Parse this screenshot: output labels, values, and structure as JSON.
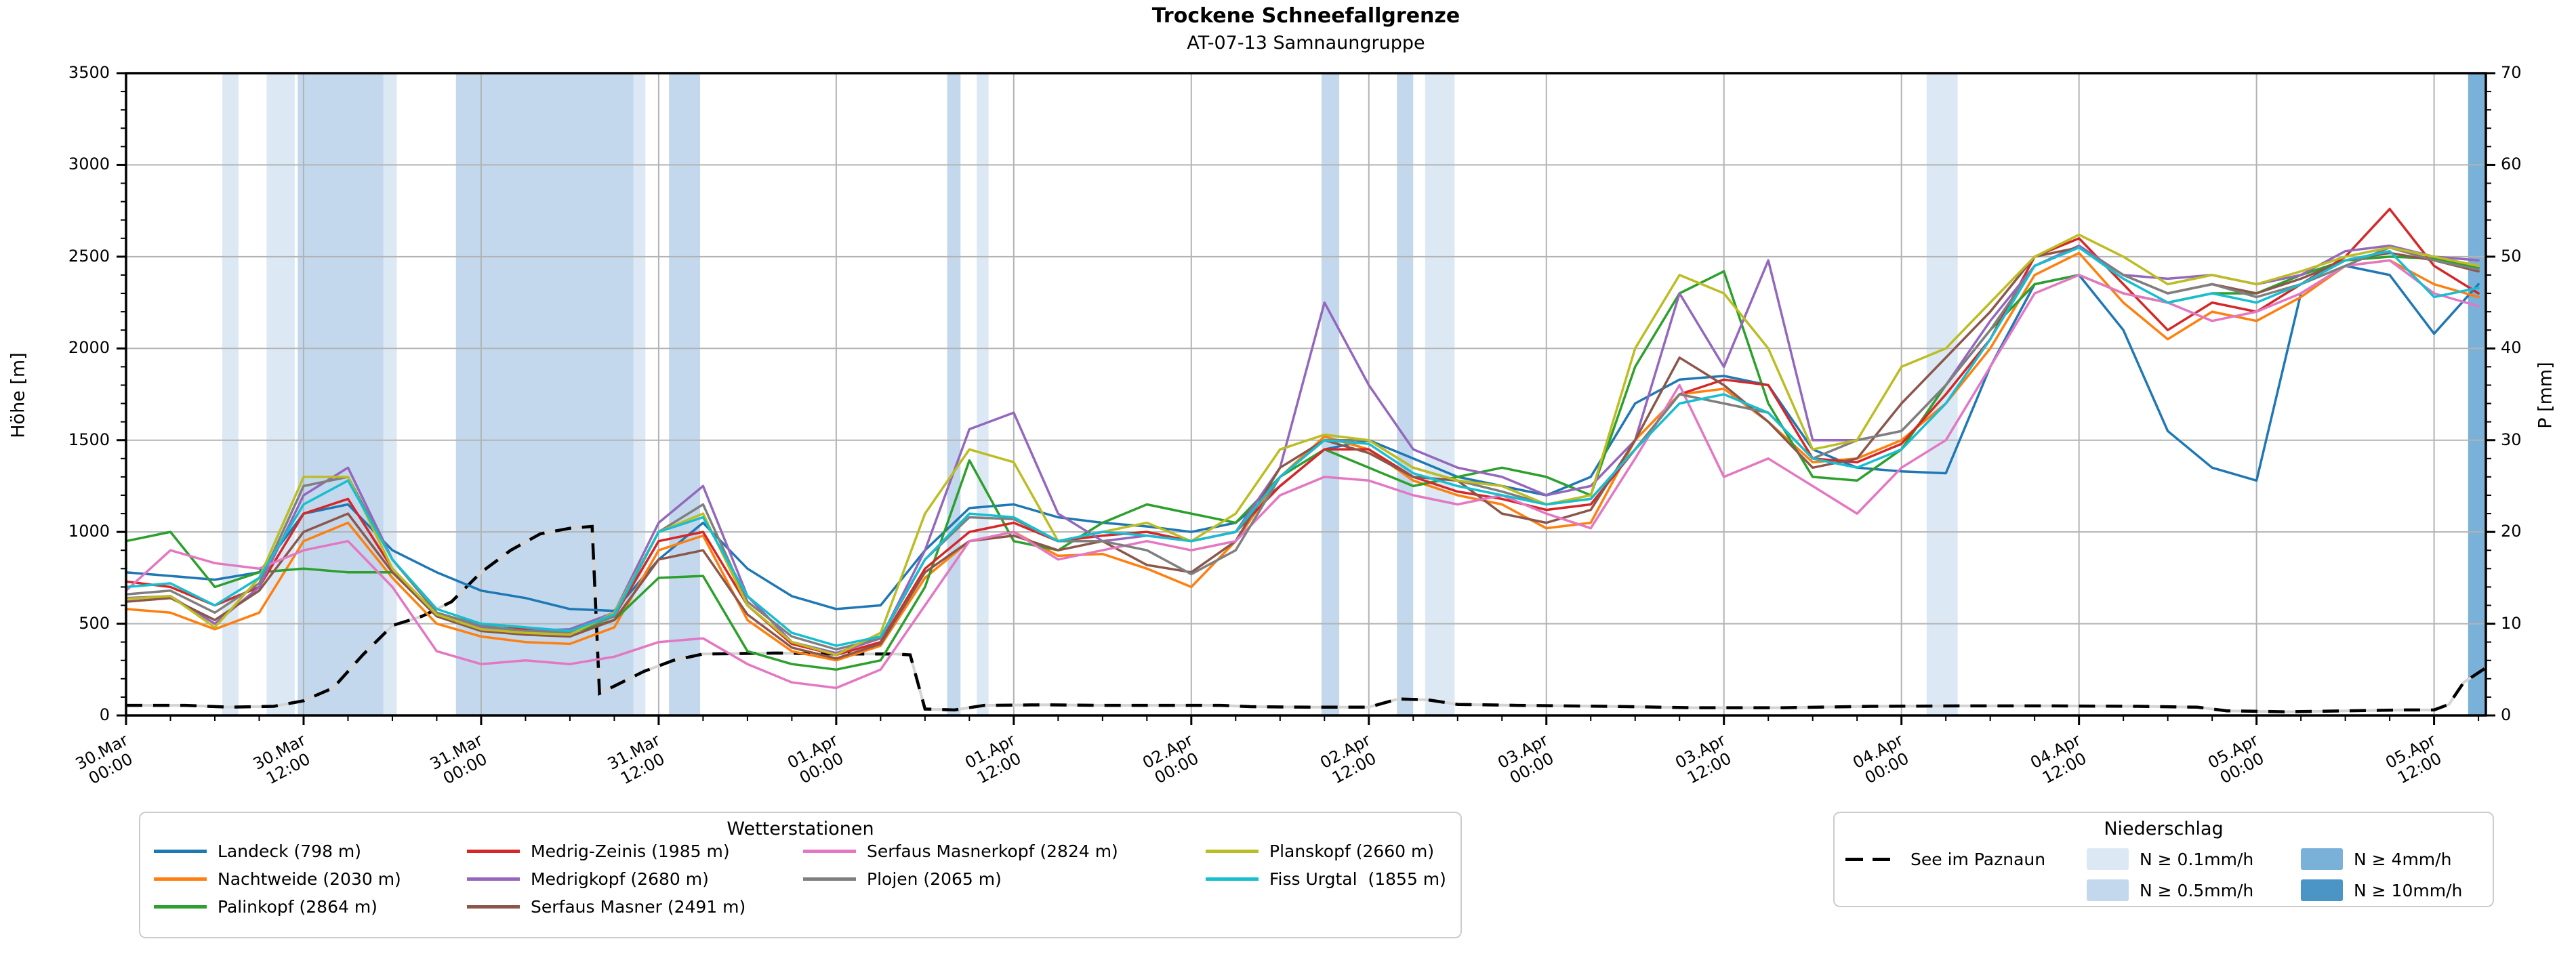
{
  "title": "Trockene Schneefallgrenze",
  "subtitle": "AT-07-13 Samnaungruppe",
  "axes": {
    "y_left_label": "Höhe [m]",
    "y_right_label": "P [mm]",
    "y_left_ticks": [
      0,
      500,
      1000,
      1500,
      2000,
      2500,
      3000,
      3500
    ],
    "y_right_ticks": [
      0,
      10,
      20,
      30,
      40,
      50,
      60,
      70
    ],
    "x_tick_labels": [
      [
        "30.Mar",
        "00:00"
      ],
      [
        "30.Mar",
        "12:00"
      ],
      [
        "31.Mar",
        "00:00"
      ],
      [
        "31.Mar",
        "12:00"
      ],
      [
        "01.Apr",
        "00:00"
      ],
      [
        "01.Apr",
        "12:00"
      ],
      [
        "02.Apr",
        "00:00"
      ],
      [
        "02.Apr",
        "12:00"
      ],
      [
        "03.Apr",
        "00:00"
      ],
      [
        "03.Apr",
        "12:00"
      ],
      [
        "04.Apr",
        "00:00"
      ],
      [
        "04.Apr",
        "12:00"
      ],
      [
        "05.Apr",
        "00:00"
      ],
      [
        "05.Apr",
        "12:00"
      ]
    ]
  },
  "legends": {
    "stations": {
      "title": "Wetterstationen",
      "items": [
        {
          "label": "Landeck (798 m)",
          "color": "#1f77b4"
        },
        {
          "label": "Nachtweide (2030 m)",
          "color": "#ff7f0e"
        },
        {
          "label": "Palinkopf (2864 m)",
          "color": "#2ca02c"
        },
        {
          "label": "Medrig-Zeinis (1985 m)",
          "color": "#d62728"
        },
        {
          "label": "Medrigkopf (2680 m)",
          "color": "#9467bd"
        },
        {
          "label": "Serfaus Masner (2491 m)",
          "color": "#8c564b"
        },
        {
          "label": "Serfaus Masnerkopf (2824 m)",
          "color": "#e377c2"
        },
        {
          "label": "Plojen (2065 m)",
          "color": "#7f7f7f"
        },
        {
          "label": "Planskopf (2660 m)",
          "color": "#bcbd22"
        },
        {
          "label": "Fiss Urgtal  (1855 m)",
          "color": "#17becf"
        }
      ]
    },
    "precip": {
      "title": "Niederschlag",
      "line_item": {
        "label": "See im Paznaun",
        "color": "#000000"
      },
      "patch_items": [
        {
          "label": "N ≥ 0.1mm/h",
          "class": "0.1",
          "color": "#dce9f5"
        },
        {
          "label": "N ≥ 0.5mm/h",
          "class": "0.5",
          "color": "#c3d8ed"
        },
        {
          "label": "N ≥ 4mm/h",
          "class": "4",
          "color": "#7ab1d9"
        },
        {
          "label": "N ≥ 10mm/h",
          "class": "10",
          "color": "#4a94c6"
        }
      ]
    }
  },
  "chart_data": {
    "type": "line",
    "title": "Trockene Schneefallgrenze",
    "subtitle": "AT-07-13 Samnaungruppe",
    "xlabel": "",
    "ylabel_left": "Höhe [m]",
    "ylabel_right": "P [mm]",
    "x_unit": "hours since 30.Mar 00:00",
    "xlim_hours": [
      0,
      159.5
    ],
    "ylim_left": [
      0,
      3500
    ],
    "ylim_right": [
      0,
      70
    ],
    "x_major_tick_step_hours": 12,
    "x_minor_tick_step_hours": 3,
    "y_left_minor_step": 100,
    "y_right_minor_step": 2,
    "grid": true,
    "x_start_hour": 0,
    "x_step_hours": 3,
    "series": [
      {
        "name": "Landeck (798 m)",
        "color": "#1f77b4",
        "values": [
          780,
          760,
          740,
          780,
          1100,
          1150,
          900,
          780,
          680,
          640,
          580,
          570,
          850,
          1050,
          800,
          650,
          580,
          600,
          900,
          1130,
          1150,
          1080,
          1050,
          1030,
          1000,
          1050,
          1250,
          1450,
          1500,
          1400,
          1300,
          1250,
          1200,
          1300,
          1700,
          1830,
          1850,
          1800,
          1450,
          1350,
          1330,
          1320,
          1900,
          2350,
          2400,
          2100,
          1550,
          1350,
          1280,
          2300,
          2450,
          2400,
          2080,
          2350
        ]
      },
      {
        "name": "Nachtweide (2030 m)",
        "color": "#ff7f0e",
        "values": [
          580,
          560,
          470,
          560,
          950,
          1050,
          750,
          500,
          430,
          400,
          390,
          480,
          900,
          980,
          520,
          350,
          300,
          380,
          750,
          950,
          1000,
          870,
          880,
          800,
          700,
          950,
          1300,
          1520,
          1450,
          1280,
          1200,
          1150,
          1020,
          1050,
          1500,
          1750,
          1780,
          1600,
          1380,
          1400,
          1500,
          1700,
          2000,
          2400,
          2520,
          2250,
          2050,
          2200,
          2150,
          2280,
          2450,
          2480,
          2350,
          2280
        ]
      },
      {
        "name": "Palinkopf (2864 m)",
        "color": "#2ca02c",
        "values": [
          950,
          1000,
          700,
          780,
          800,
          780,
          780,
          550,
          500,
          480,
          450,
          520,
          750,
          760,
          350,
          280,
          250,
          300,
          700,
          1390,
          950,
          900,
          1050,
          1150,
          1100,
          1050,
          1300,
          1450,
          1350,
          1250,
          1300,
          1350,
          1300,
          1200,
          1900,
          2300,
          2420,
          1700,
          1300,
          1280,
          1450,
          1800,
          2100,
          2350,
          2400,
          2300,
          2250,
          2300,
          2300,
          2400,
          2480,
          2500,
          2490,
          2440
        ]
      },
      {
        "name": "Medrig-Zeinis (1985 m)",
        "color": "#d62728",
        "values": [
          730,
          700,
          600,
          700,
          1100,
          1180,
          800,
          550,
          480,
          470,
          450,
          540,
          950,
          1000,
          600,
          390,
          330,
          400,
          800,
          1000,
          1050,
          950,
          980,
          1000,
          950,
          1000,
          1250,
          1450,
          1450,
          1300,
          1220,
          1180,
          1120,
          1150,
          1450,
          1750,
          1830,
          1800,
          1400,
          1380,
          1480,
          1750,
          2050,
          2500,
          2600,
          2350,
          2100,
          2250,
          2200,
          2350,
          2500,
          2760,
          2450,
          2300
        ]
      },
      {
        "name": "Medrigkopf (2680 m)",
        "color": "#9467bd",
        "values": [
          640,
          650,
          500,
          700,
          1200,
          1350,
          850,
          560,
          480,
          460,
          470,
          560,
          1050,
          1250,
          650,
          400,
          340,
          420,
          900,
          1560,
          1650,
          1100,
          950,
          980,
          950,
          1000,
          1350,
          2250,
          1800,
          1450,
          1350,
          1300,
          1200,
          1250,
          1500,
          2300,
          1900,
          2480,
          1500,
          1500,
          1550,
          1800,
          2150,
          2450,
          2560,
          2400,
          2380,
          2400,
          2350,
          2400,
          2530,
          2560,
          2500,
          2480
        ]
      },
      {
        "name": "Serfaus Masner (2491 m)",
        "color": "#8c564b",
        "values": [
          620,
          640,
          520,
          680,
          1000,
          1100,
          780,
          540,
          460,
          440,
          430,
          520,
          850,
          900,
          550,
          370,
          310,
          390,
          780,
          950,
          980,
          900,
          950,
          820,
          780,
          950,
          1350,
          1500,
          1430,
          1300,
          1280,
          1100,
          1050,
          1120,
          1500,
          1950,
          1800,
          1600,
          1350,
          1400,
          1700,
          1950,
          2200,
          2500,
          2550,
          2400,
          2300,
          2350,
          2300,
          2380,
          2480,
          2520,
          2480,
          2420
        ]
      },
      {
        "name": "Serfaus Masnerkopf (2824 m)",
        "color": "#e377c2",
        "values": [
          680,
          900,
          830,
          800,
          900,
          950,
          700,
          350,
          280,
          300,
          280,
          320,
          400,
          420,
          280,
          180,
          150,
          250,
          600,
          950,
          1000,
          850,
          900,
          950,
          900,
          950,
          1200,
          1300,
          1280,
          1200,
          1150,
          1200,
          1100,
          1020,
          1400,
          1800,
          1300,
          1400,
          1250,
          1100,
          1350,
          1500,
          1900,
          2300,
          2400,
          2300,
          2250,
          2150,
          2200,
          2300,
          2450,
          2480,
          2300,
          2230
        ]
      },
      {
        "name": "Plojen (2065 m)",
        "color": "#7f7f7f",
        "values": [
          660,
          680,
          560,
          720,
          1250,
          1300,
          850,
          560,
          490,
          460,
          450,
          540,
          1000,
          1150,
          620,
          430,
          360,
          420,
          850,
          1080,
          1070,
          950,
          950,
          900,
          770,
          900,
          1300,
          1500,
          1500,
          1350,
          1280,
          1220,
          1150,
          1180,
          1450,
          1750,
          1700,
          1650,
          1400,
          1500,
          1550,
          1800,
          2100,
          2450,
          2550,
          2400,
          2300,
          2350,
          2280,
          2350,
          2450,
          2550,
          2480,
          2430
        ]
      },
      {
        "name": "Planskopf (2660 m)",
        "color": "#bcbd22",
        "values": [
          635,
          650,
          480,
          750,
          1300,
          1300,
          800,
          550,
          470,
          450,
          440,
          560,
          1000,
          1100,
          600,
          400,
          330,
          450,
          1100,
          1450,
          1380,
          950,
          1000,
          1050,
          950,
          1100,
          1450,
          1530,
          1500,
          1350,
          1280,
          1250,
          1150,
          1200,
          2000,
          2400,
          2300,
          2000,
          1450,
          1500,
          1900,
          2000,
          2250,
          2500,
          2620,
          2500,
          2350,
          2400,
          2350,
          2420,
          2500,
          2550,
          2500,
          2450
        ]
      },
      {
        "name": "Fiss Urgtal  (1855 m)",
        "color": "#17becf",
        "values": [
          700,
          720,
          600,
          750,
          1150,
          1280,
          850,
          580,
          500,
          480,
          460,
          550,
          1000,
          1080,
          650,
          450,
          380,
          430,
          850,
          1100,
          1080,
          950,
          1000,
          980,
          950,
          1000,
          1300,
          1500,
          1480,
          1320,
          1250,
          1200,
          1150,
          1180,
          1450,
          1700,
          1750,
          1650,
          1400,
          1350,
          1450,
          1700,
          2050,
          2450,
          2550,
          2380,
          2250,
          2300,
          2250,
          2350,
          2480,
          2530,
          2280,
          2330
        ]
      }
    ],
    "lake_line": {
      "name": "See im Paznaun",
      "style": "dashed",
      "color": "#000000",
      "points_h_m": [
        [
          0,
          55
        ],
        [
          4,
          55
        ],
        [
          7,
          45
        ],
        [
          10,
          50
        ],
        [
          12,
          80
        ],
        [
          14,
          150
        ],
        [
          16,
          330
        ],
        [
          18,
          490
        ],
        [
          20,
          540
        ],
        [
          22,
          620
        ],
        [
          24,
          780
        ],
        [
          26,
          900
        ],
        [
          28,
          990
        ],
        [
          30,
          1020
        ],
        [
          31.5,
          1030
        ],
        [
          32,
          120
        ],
        [
          33,
          160
        ],
        [
          35,
          240
        ],
        [
          37,
          300
        ],
        [
          39,
          335
        ],
        [
          44,
          340
        ],
        [
          48,
          335
        ],
        [
          52,
          335
        ],
        [
          53,
          330
        ],
        [
          54,
          35
        ],
        [
          56,
          30
        ],
        [
          58,
          55
        ],
        [
          62,
          58
        ],
        [
          66,
          55
        ],
        [
          70,
          55
        ],
        [
          74,
          55
        ],
        [
          76,
          48
        ],
        [
          80,
          45
        ],
        [
          84,
          45
        ],
        [
          86,
          90
        ],
        [
          88,
          85
        ],
        [
          90,
          60
        ],
        [
          94,
          55
        ],
        [
          100,
          50
        ],
        [
          106,
          42
        ],
        [
          112,
          42
        ],
        [
          118,
          50
        ],
        [
          124,
          52
        ],
        [
          130,
          52
        ],
        [
          136,
          50
        ],
        [
          140,
          45
        ],
        [
          142,
          25
        ],
        [
          146,
          20
        ],
        [
          150,
          25
        ],
        [
          154,
          30
        ],
        [
          156,
          30
        ],
        [
          157,
          60
        ],
        [
          158,
          180
        ],
        [
          159.5,
          260
        ]
      ]
    },
    "precip_bands": [
      {
        "class": "0.1",
        "from_hour": 6.5,
        "to_hour": 7.6
      },
      {
        "class": "0.1",
        "from_hour": 9.5,
        "to_hour": 11.4
      },
      {
        "class": "0.5",
        "from_hour": 11.6,
        "to_hour": 17.4
      },
      {
        "class": "0.1",
        "from_hour": 17.4,
        "to_hour": 18.3
      },
      {
        "class": "0.5",
        "from_hour": 22.3,
        "to_hour": 34.3
      },
      {
        "class": "0.1",
        "from_hour": 34.3,
        "to_hour": 35.1
      },
      {
        "class": "0.5",
        "from_hour": 36.7,
        "to_hour": 38.8
      },
      {
        "class": "0.5",
        "from_hour": 55.5,
        "to_hour": 56.4
      },
      {
        "class": "0.1",
        "from_hour": 57.5,
        "to_hour": 58.3
      },
      {
        "class": "0.5",
        "from_hour": 80.8,
        "to_hour": 82.0
      },
      {
        "class": "0.5",
        "from_hour": 85.9,
        "to_hour": 87.0
      },
      {
        "class": "0.1",
        "from_hour": 87.8,
        "to_hour": 89.8
      },
      {
        "class": "0.1",
        "from_hour": 121.7,
        "to_hour": 123.8
      },
      {
        "class": "4",
        "from_hour": 158.3,
        "to_hour": 159.5
      }
    ],
    "band_colors": {
      "0.1": "#dce9f5",
      "0.5": "#c3d8ed",
      "4": "#7ab1d9",
      "10": "#4a94c6"
    },
    "legend_position": "below"
  }
}
